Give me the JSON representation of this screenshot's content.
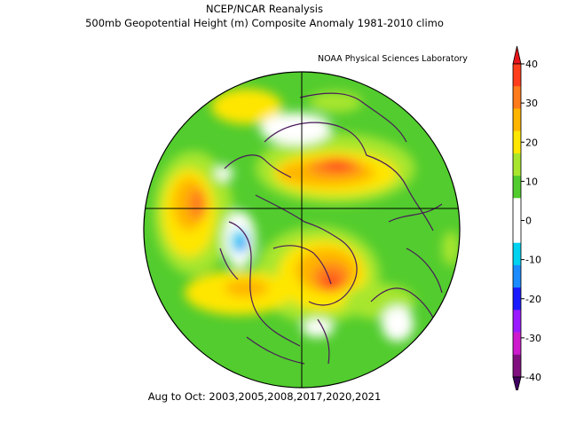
{
  "header": {
    "title_line1": "NCEP/NCAR Reanalysis",
    "title_line2": "500mb Geopotential Height (m) Composite Anomaly 1981-2010 climo",
    "lab_label": "NOAA Physical Sciences Laboratory"
  },
  "footer": {
    "period": "Aug to Oct: 2003,2005,2008,2017,2020,2021"
  },
  "colorbar": {
    "ticks": [
      "40",
      "30",
      "20",
      "10",
      "0",
      "-10",
      "-20",
      "-30",
      "-40"
    ],
    "colors": [
      "#ff3d1a",
      "#ff7a1a",
      "#ffb400",
      "#ffe600",
      "#a8e62e",
      "#52cc2e",
      "#ffffff",
      "#ffffff",
      "#00d2f0",
      "#1a8cff",
      "#1a1aff",
      "#9b1aff",
      "#cc1acc",
      "#80107f"
    ],
    "top_arrow_color": "#e8141a",
    "bottom_arrow_color": "#400060"
  }
}
